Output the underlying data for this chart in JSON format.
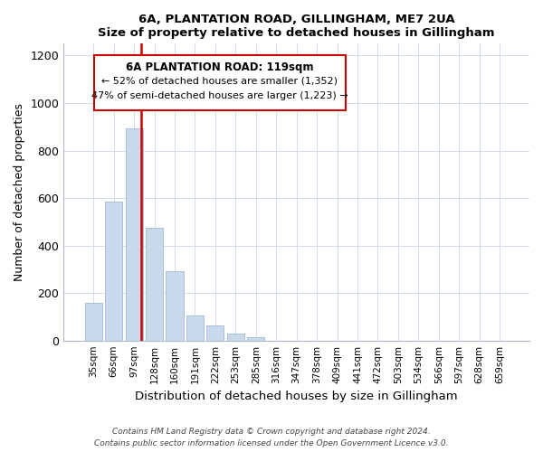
{
  "title": "6A, PLANTATION ROAD, GILLINGHAM, ME7 2UA",
  "subtitle": "Size of property relative to detached houses in Gillingham",
  "xlabel": "Distribution of detached houses by size in Gillingham",
  "ylabel": "Number of detached properties",
  "bar_labels": [
    "35sqm",
    "66sqm",
    "97sqm",
    "128sqm",
    "160sqm",
    "191sqm",
    "222sqm",
    "253sqm",
    "285sqm",
    "316sqm",
    "347sqm",
    "378sqm",
    "409sqm",
    "441sqm",
    "472sqm",
    "503sqm",
    "534sqm",
    "566sqm",
    "597sqm",
    "628sqm",
    "659sqm"
  ],
  "bar_values": [
    157,
    585,
    893,
    473,
    291,
    105,
    64,
    28,
    15,
    0,
    0,
    0,
    0,
    0,
    0,
    0,
    0,
    0,
    0,
    0,
    0
  ],
  "bar_color": "#c9d9ec",
  "bar_edge_color": "#a8bfd8",
  "vline_x_index": 2,
  "vline_color": "#cc0000",
  "ylim": [
    0,
    1250
  ],
  "yticks": [
    0,
    200,
    400,
    600,
    800,
    1000,
    1200
  ],
  "annotation_title": "6A PLANTATION ROAD: 119sqm",
  "annotation_line1": "← 52% of detached houses are smaller (1,352)",
  "annotation_line2": "47% of semi-detached houses are larger (1,223) →",
  "box_edge_color": "#cc0000",
  "footer1": "Contains HM Land Registry data © Crown copyright and database right 2024.",
  "footer2": "Contains public sector information licensed under the Open Government Licence v3.0."
}
